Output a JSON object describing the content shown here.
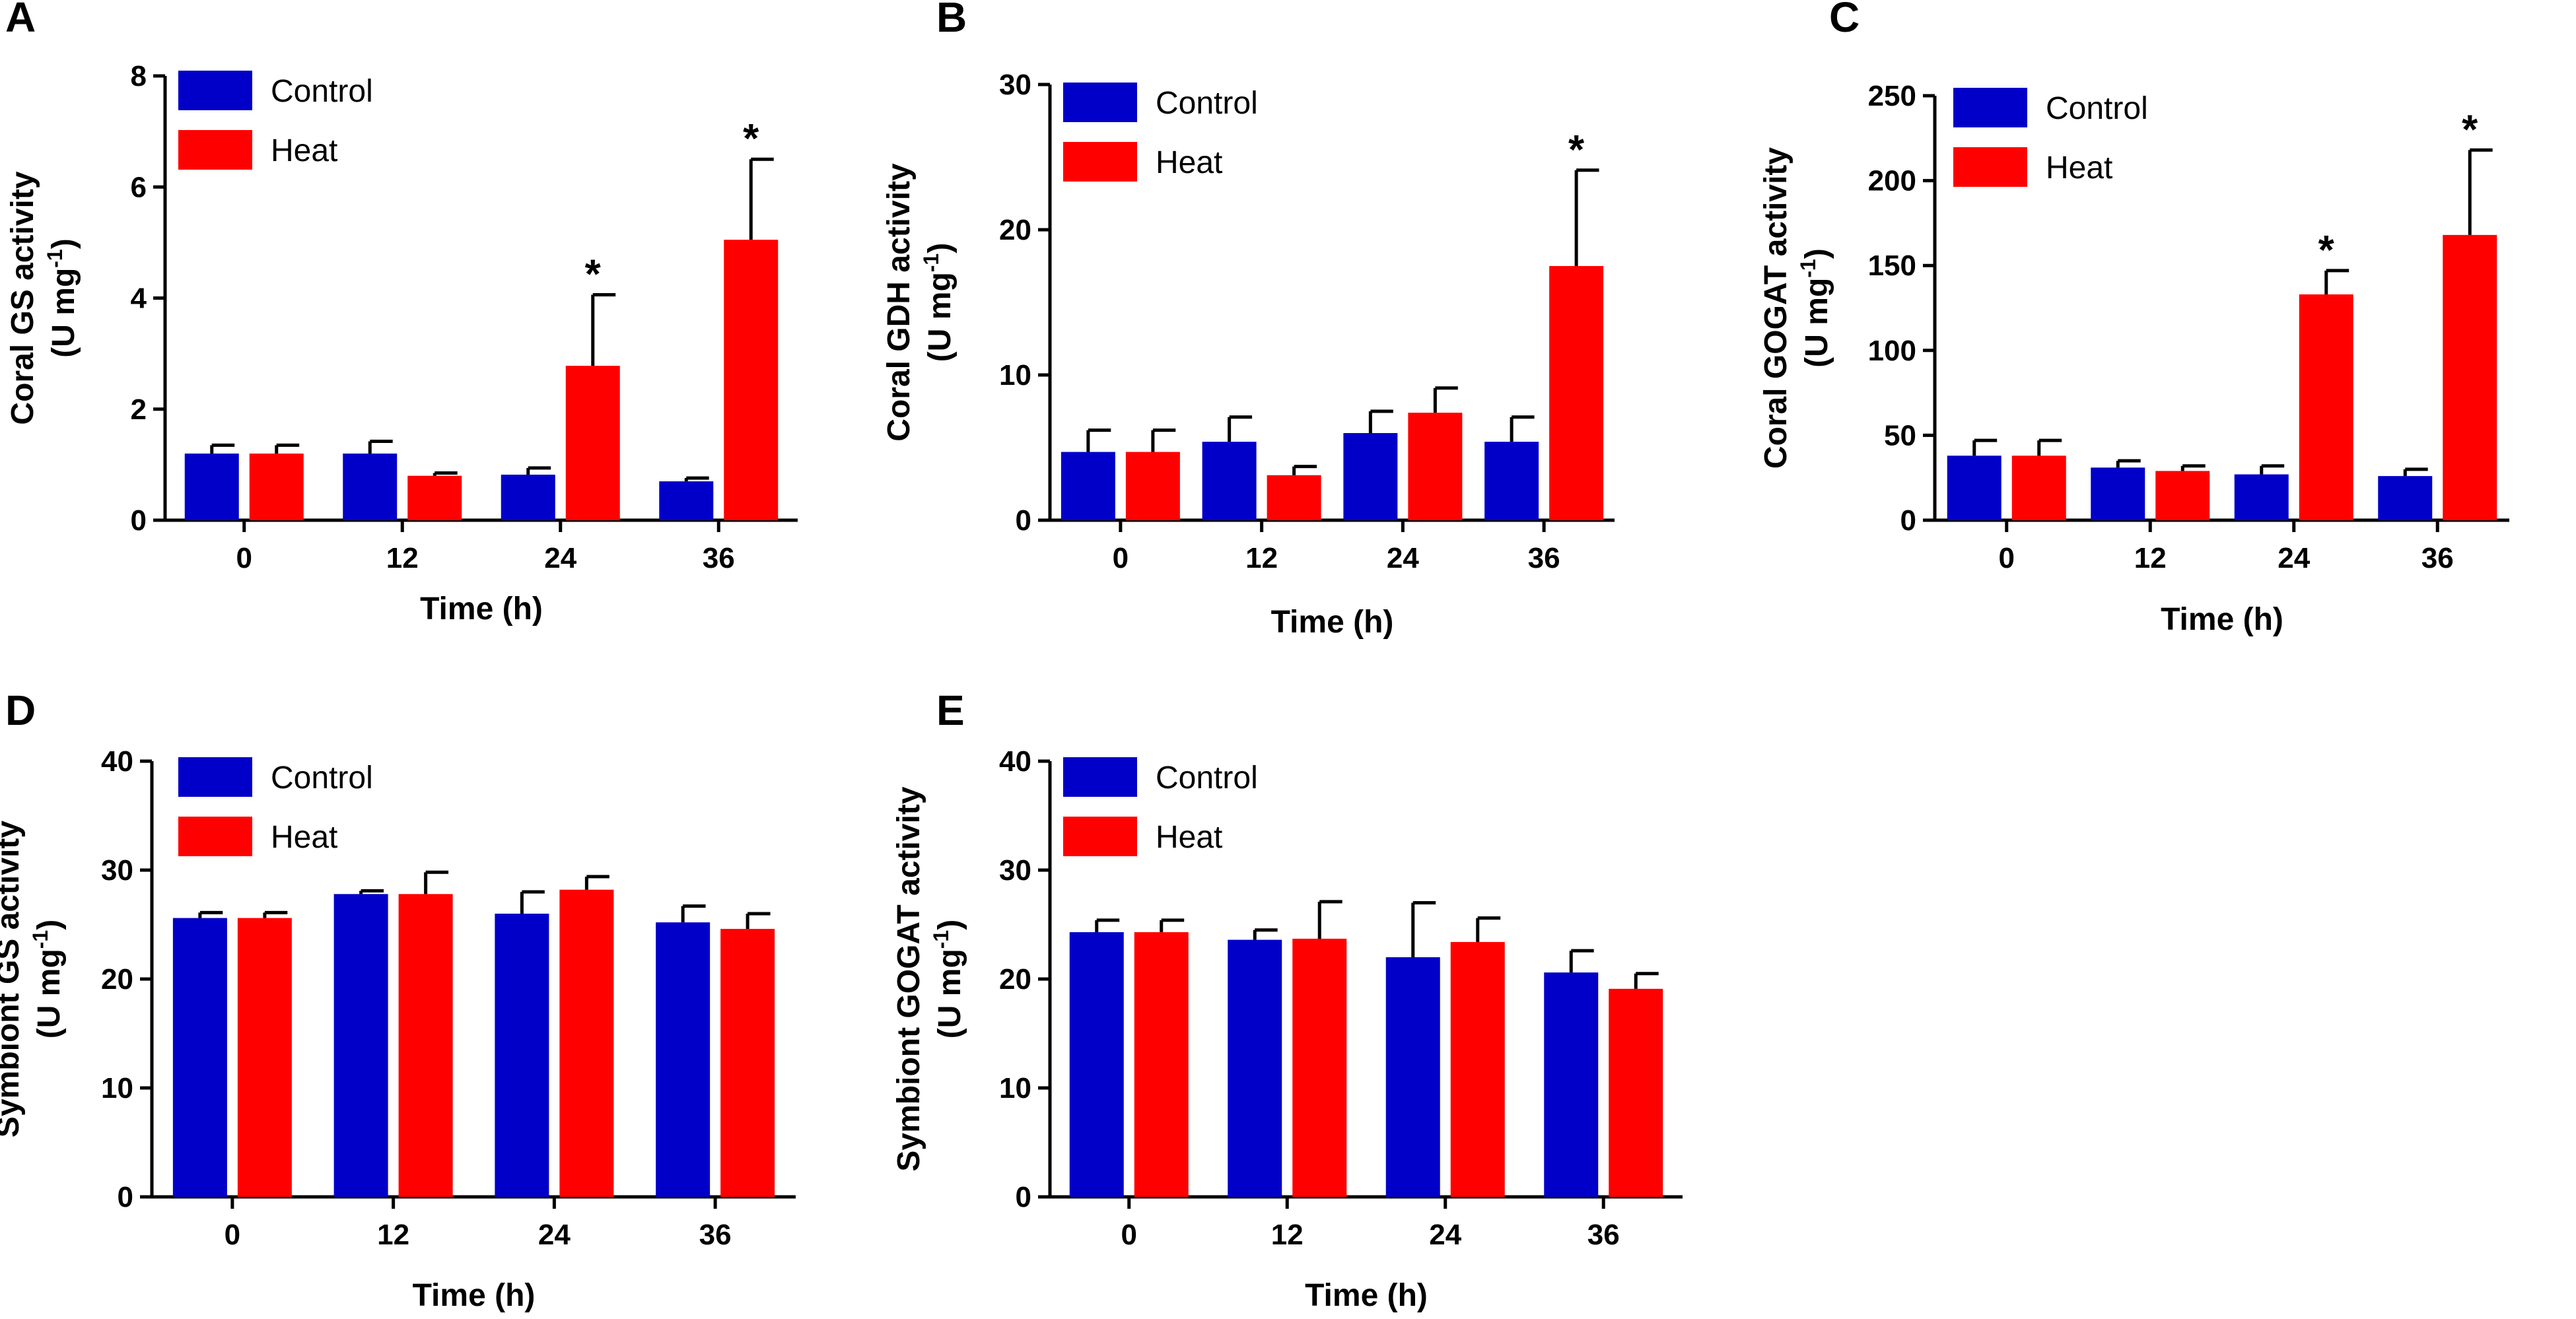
{
  "chart_data": [
    {
      "panel": "A",
      "type": "bar",
      "title": "",
      "xlabel": "Time (h)",
      "ylabel": [
        "Coral GS activity",
        "(U mg",
        "-1",
        ")"
      ],
      "categories": [
        "0",
        "12",
        "24",
        "36"
      ],
      "ylim": [
        0,
        8
      ],
      "yticks": [
        0,
        2,
        4,
        6,
        8
      ],
      "legend": "top-left",
      "series": [
        {
          "name": "Control",
          "color": "#0000c8",
          "values": [
            1.2,
            1.2,
            0.82,
            0.7
          ],
          "errors": [
            0.15,
            0.22,
            0.12,
            0.06
          ],
          "sig": [
            false,
            false,
            false,
            false
          ]
        },
        {
          "name": "Heat",
          "color": "#ff0000",
          "values": [
            1.2,
            0.8,
            2.78,
            5.05
          ],
          "errors": [
            0.15,
            0.05,
            1.28,
            1.45
          ],
          "sig": [
            false,
            false,
            true,
            true
          ]
        }
      ],
      "sig_marker": "*"
    },
    {
      "panel": "B",
      "type": "bar",
      "title": "",
      "xlabel": "Time (h)",
      "ylabel": [
        "Coral GDH activity",
        "(U mg",
        "-1",
        ")"
      ],
      "categories": [
        "0",
        "12",
        "24",
        "36"
      ],
      "ylim": [
        0,
        30
      ],
      "yticks": [
        0,
        10,
        20,
        30
      ],
      "legend": "top-left",
      "series": [
        {
          "name": "Control",
          "color": "#0000c8",
          "values": [
            4.7,
            5.4,
            6.0,
            5.4
          ],
          "errors": [
            1.5,
            1.7,
            1.5,
            1.7
          ],
          "sig": [
            false,
            false,
            false,
            false
          ]
        },
        {
          "name": "Heat",
          "color": "#ff0000",
          "values": [
            4.7,
            3.1,
            7.4,
            17.5
          ],
          "errors": [
            1.5,
            0.6,
            1.7,
            6.6
          ],
          "sig": [
            false,
            false,
            false,
            true
          ]
        }
      ],
      "sig_marker": "*"
    },
    {
      "panel": "C",
      "type": "bar",
      "title": "",
      "xlabel": "Time (h)",
      "ylabel": [
        "Coral GOGAT activity",
        "(U mg",
        "-1",
        ")"
      ],
      "categories": [
        "0",
        "12",
        "24",
        "36"
      ],
      "ylim": [
        0,
        250
      ],
      "yticks": [
        0,
        50,
        100,
        150,
        200,
        250
      ],
      "legend": "top-left",
      "series": [
        {
          "name": "Control",
          "color": "#0000c8",
          "values": [
            38,
            31,
            27,
            26
          ],
          "errors": [
            9,
            4,
            5,
            4
          ],
          "sig": [
            false,
            false,
            false,
            false
          ]
        },
        {
          "name": "Heat",
          "color": "#ff0000",
          "values": [
            38,
            29,
            133,
            168
          ],
          "errors": [
            9,
            3,
            14,
            50
          ],
          "sig": [
            false,
            false,
            true,
            true
          ]
        }
      ],
      "sig_marker": "*"
    },
    {
      "panel": "D",
      "type": "bar",
      "title": "",
      "xlabel": "Time (h)",
      "ylabel": [
        "Symbiont GS activity",
        "(U mg",
        "-1",
        ")"
      ],
      "categories": [
        "0",
        "12",
        "24",
        "36"
      ],
      "ylim": [
        0,
        40
      ],
      "yticks": [
        0,
        10,
        20,
        30,
        40
      ],
      "legend": "top-left",
      "series": [
        {
          "name": "Control",
          "color": "#0000c8",
          "values": [
            25.6,
            27.8,
            26.0,
            25.2
          ],
          "errors": [
            0.5,
            0.3,
            2.0,
            1.5
          ],
          "sig": [
            false,
            false,
            false,
            false
          ]
        },
        {
          "name": "Heat",
          "color": "#ff0000",
          "values": [
            25.6,
            27.8,
            28.2,
            24.6
          ],
          "errors": [
            0.5,
            2.0,
            1.2,
            1.4
          ],
          "sig": [
            false,
            false,
            false,
            false
          ]
        }
      ],
      "sig_marker": "*"
    },
    {
      "panel": "E",
      "type": "bar",
      "title": "",
      "xlabel": "Time (h)",
      "ylabel": [
        "Symbiont GOGAT activity",
        "(U mg",
        "-1",
        ")"
      ],
      "categories": [
        "0",
        "12",
        "24",
        "36"
      ],
      "ylim": [
        0,
        40
      ],
      "yticks": [
        0,
        10,
        20,
        30,
        40
      ],
      "legend": "top-left",
      "series": [
        {
          "name": "Control",
          "color": "#0000c8",
          "values": [
            24.3,
            23.6,
            22.0,
            20.6
          ],
          "errors": [
            1.1,
            0.9,
            5.0,
            2.0
          ],
          "sig": [
            false,
            false,
            false,
            false
          ]
        },
        {
          "name": "Heat",
          "color": "#ff0000",
          "values": [
            24.3,
            23.7,
            23.4,
            19.1
          ],
          "errors": [
            1.1,
            3.4,
            2.2,
            1.4
          ],
          "sig": [
            false,
            false,
            false,
            false
          ]
        }
      ],
      "sig_marker": "*"
    }
  ]
}
